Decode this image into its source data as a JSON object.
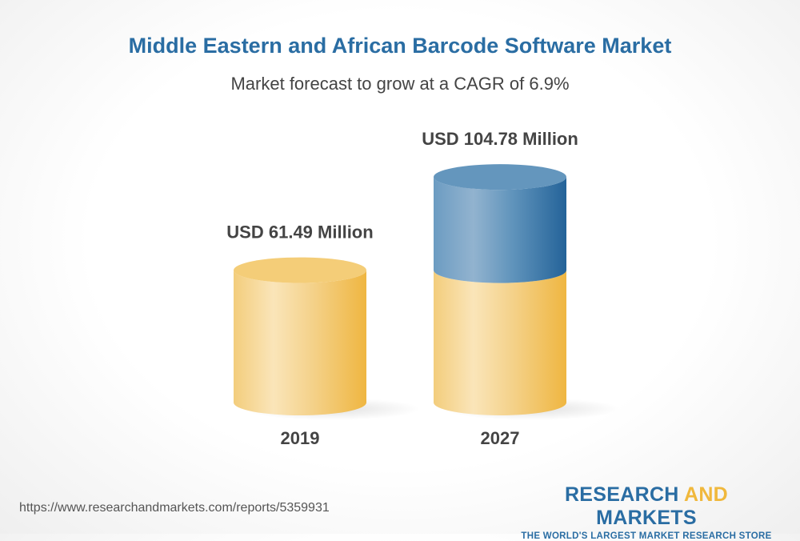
{
  "chart_data": {
    "type": "bar",
    "style": "3d-cylinder",
    "title": "Middle Eastern and African Barcode Software Market",
    "subtitle": "Market forecast to grow at a CAGR of 6.9%",
    "categories": [
      "2019",
      "2027"
    ],
    "values": [
      61.49,
      104.78
    ],
    "data_labels": [
      "USD 61.49 Million",
      "USD 104.78 Million"
    ],
    "xlabel": "",
    "ylabel": "",
    "grid": false,
    "colors": {
      "base": "#f0b83c",
      "growth": "#2a6da3"
    }
  },
  "footer": {
    "url": "https://www.researchandmarkets.com/reports/5359931",
    "logo": {
      "part1": "RESEARCH ",
      "part2": "AND",
      "part3": " MARKETS",
      "tagline": "THE WORLD'S LARGEST MARKET RESEARCH STORE"
    }
  }
}
